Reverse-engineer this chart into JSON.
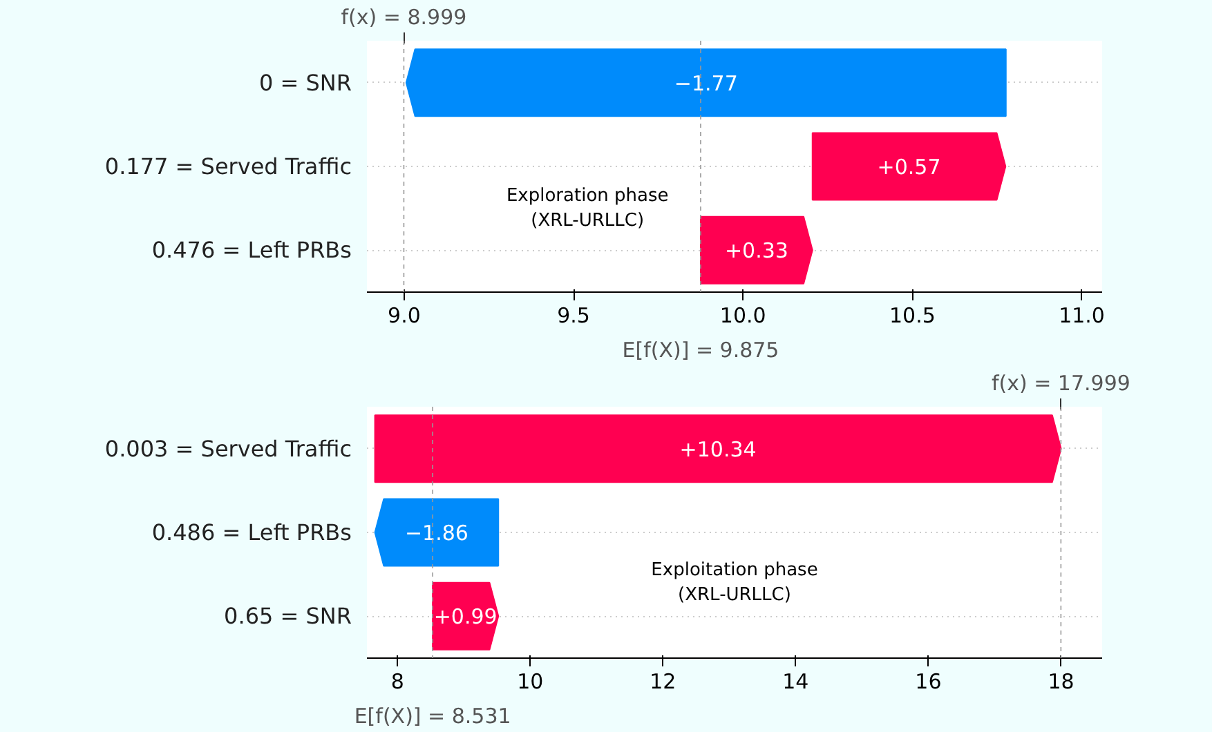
{
  "chart_data": [
    {
      "type": "bar",
      "orientation": "horizontal",
      "categories": [
        "0 = SNR",
        "0.177 = Served Traffic",
        "0.476 = Left PRBs"
      ],
      "values": [
        -1.77,
        0.57,
        0.33
      ],
      "base": [
        10.776,
        10.205,
        9.875
      ],
      "colors": [
        "#008bfb",
        "#ff0051",
        "#ff0051"
      ],
      "value_labels": [
        "−1.77",
        "+0.57",
        "+0.33"
      ],
      "xlim": [
        8.89,
        11.06
      ],
      "xticks": [
        {
          "value": 9,
          "label": "9.0"
        },
        {
          "value": 9.5,
          "label": "9.5"
        },
        {
          "value": 10,
          "label": "10.0"
        },
        {
          "value": 10.5,
          "label": "10.5"
        },
        {
          "value": 11,
          "label": "11.0"
        }
      ],
      "ref_lines": [
        {
          "axis": "x",
          "value": 8.999,
          "label": "f(x) = 8.999",
          "color": "#999999",
          "line_style": "dashed"
        },
        {
          "axis": "x",
          "value": 9.875,
          "label": "E[f(X)] = 9.875",
          "color": "#999999",
          "line_style": "dashed"
        }
      ],
      "annotations": [
        "Exploration phase\n(XRL-URLLC)"
      ],
      "grid": "y"
    },
    {
      "type": "bar",
      "orientation": "horizontal",
      "categories": [
        "0.003 = Served Traffic",
        "0.486 = Left PRBs",
        "0.65 = SNR"
      ],
      "values": [
        10.34,
        -1.86,
        0.99
      ],
      "base": [
        7.661,
        9.521,
        8.531
      ],
      "colors": [
        "#ff0051",
        "#008bfb",
        "#ff0051"
      ],
      "value_labels": [
        "+10.34",
        "−1.86",
        "+0.99"
      ],
      "xlim": [
        7.54,
        18.62
      ],
      "xticks": [
        8,
        10,
        12,
        14,
        16,
        18
      ],
      "ref_lines": [
        {
          "axis": "x",
          "value": 17.999,
          "label": "f(x) = 17.999",
          "color": "#999999",
          "line_style": "dashed"
        },
        {
          "axis": "x",
          "value": 8.531,
          "label": "E[f(X)] = 8.531",
          "color": "#999999",
          "line_style": "dashed"
        }
      ],
      "annotations": [
        "Exploitation phase\n(XRL-URLLC)"
      ],
      "grid": "y"
    }
  ]
}
